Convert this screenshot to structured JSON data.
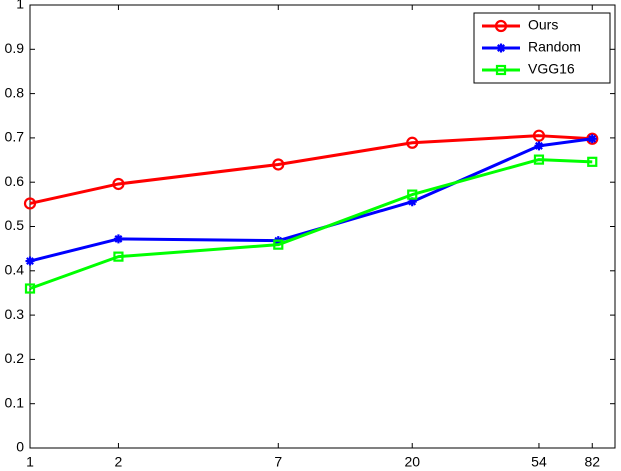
{
  "chart_data": {
    "type": "line",
    "xscale": "log",
    "x": [
      1,
      2,
      7,
      20,
      54,
      82
    ],
    "xlim": [
      1,
      98
    ],
    "xticks": [
      1,
      2,
      7,
      20,
      54,
      82
    ],
    "ylim": [
      0,
      1
    ],
    "yticks": [
      0,
      0.1,
      0.2,
      0.3,
      0.4,
      0.5,
      0.6,
      0.7,
      0.8,
      0.9,
      1
    ],
    "legend": "top-right",
    "series": [
      {
        "name": "Ours",
        "color": "#ff0000",
        "marker": "circle",
        "values": [
          0.552,
          0.596,
          0.64,
          0.689,
          0.705,
          0.698
        ]
      },
      {
        "name": "Random",
        "color": "#0000ff",
        "marker": "star",
        "values": [
          0.422,
          0.472,
          0.468,
          0.556,
          0.682,
          0.698
        ]
      },
      {
        "name": "VGG16",
        "color": "#00ff00",
        "marker": "square",
        "values": [
          0.36,
          0.432,
          0.459,
          0.572,
          0.651,
          0.646
        ]
      }
    ]
  }
}
